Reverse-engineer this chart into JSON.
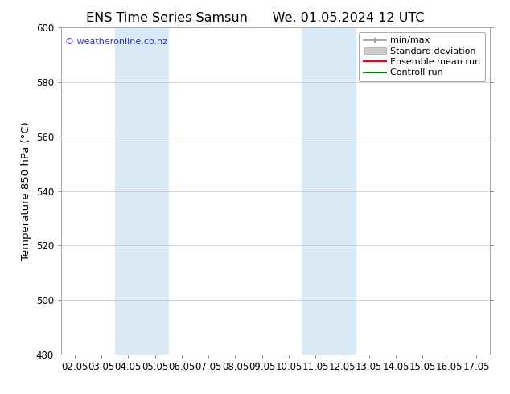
{
  "title_left": "ENS Time Series Samsun",
  "title_right": "We. 01.05.2024 12 UTC",
  "ylabel": "Temperature 850 hPa (°C)",
  "ylim": [
    480,
    600
  ],
  "yticks": [
    480,
    500,
    520,
    540,
    560,
    580,
    600
  ],
  "xtick_labels": [
    "02.05",
    "03.05",
    "04.05",
    "05.05",
    "06.05",
    "07.05",
    "08.05",
    "09.05",
    "10.05",
    "11.05",
    "12.05",
    "13.05",
    "14.05",
    "15.05",
    "16.05",
    "17.05"
  ],
  "xtick_positions": [
    0,
    1,
    2,
    3,
    4,
    5,
    6,
    7,
    8,
    9,
    10,
    11,
    12,
    13,
    14,
    15
  ],
  "shaded_regions": [
    {
      "x_start": 2.0,
      "x_end": 4.0,
      "color": "#daeaf7"
    },
    {
      "x_start": 9.0,
      "x_end": 11.0,
      "color": "#daeaf7"
    }
  ],
  "watermark_text": "© weatheronline.co.nz",
  "watermark_color": "#3333cc",
  "legend_items": [
    {
      "label": "min/max",
      "color": "#999999",
      "lw": 1.2
    },
    {
      "label": "Standard deviation",
      "color": "#cccccc",
      "lw": 5
    },
    {
      "label": "Ensemble mean run",
      "color": "#ff0000",
      "lw": 1.5
    },
    {
      "label": "Controll run",
      "color": "#008000",
      "lw": 1.5
    }
  ],
  "background_color": "#ffffff",
  "plot_bg_color": "#ffffff",
  "spine_color": "#aaaaaa",
  "tick_color": "#000000",
  "title_fontsize": 11.5,
  "label_fontsize": 9.5,
  "tick_fontsize": 8.5,
  "watermark_fontsize": 8,
  "legend_fontsize": 8
}
